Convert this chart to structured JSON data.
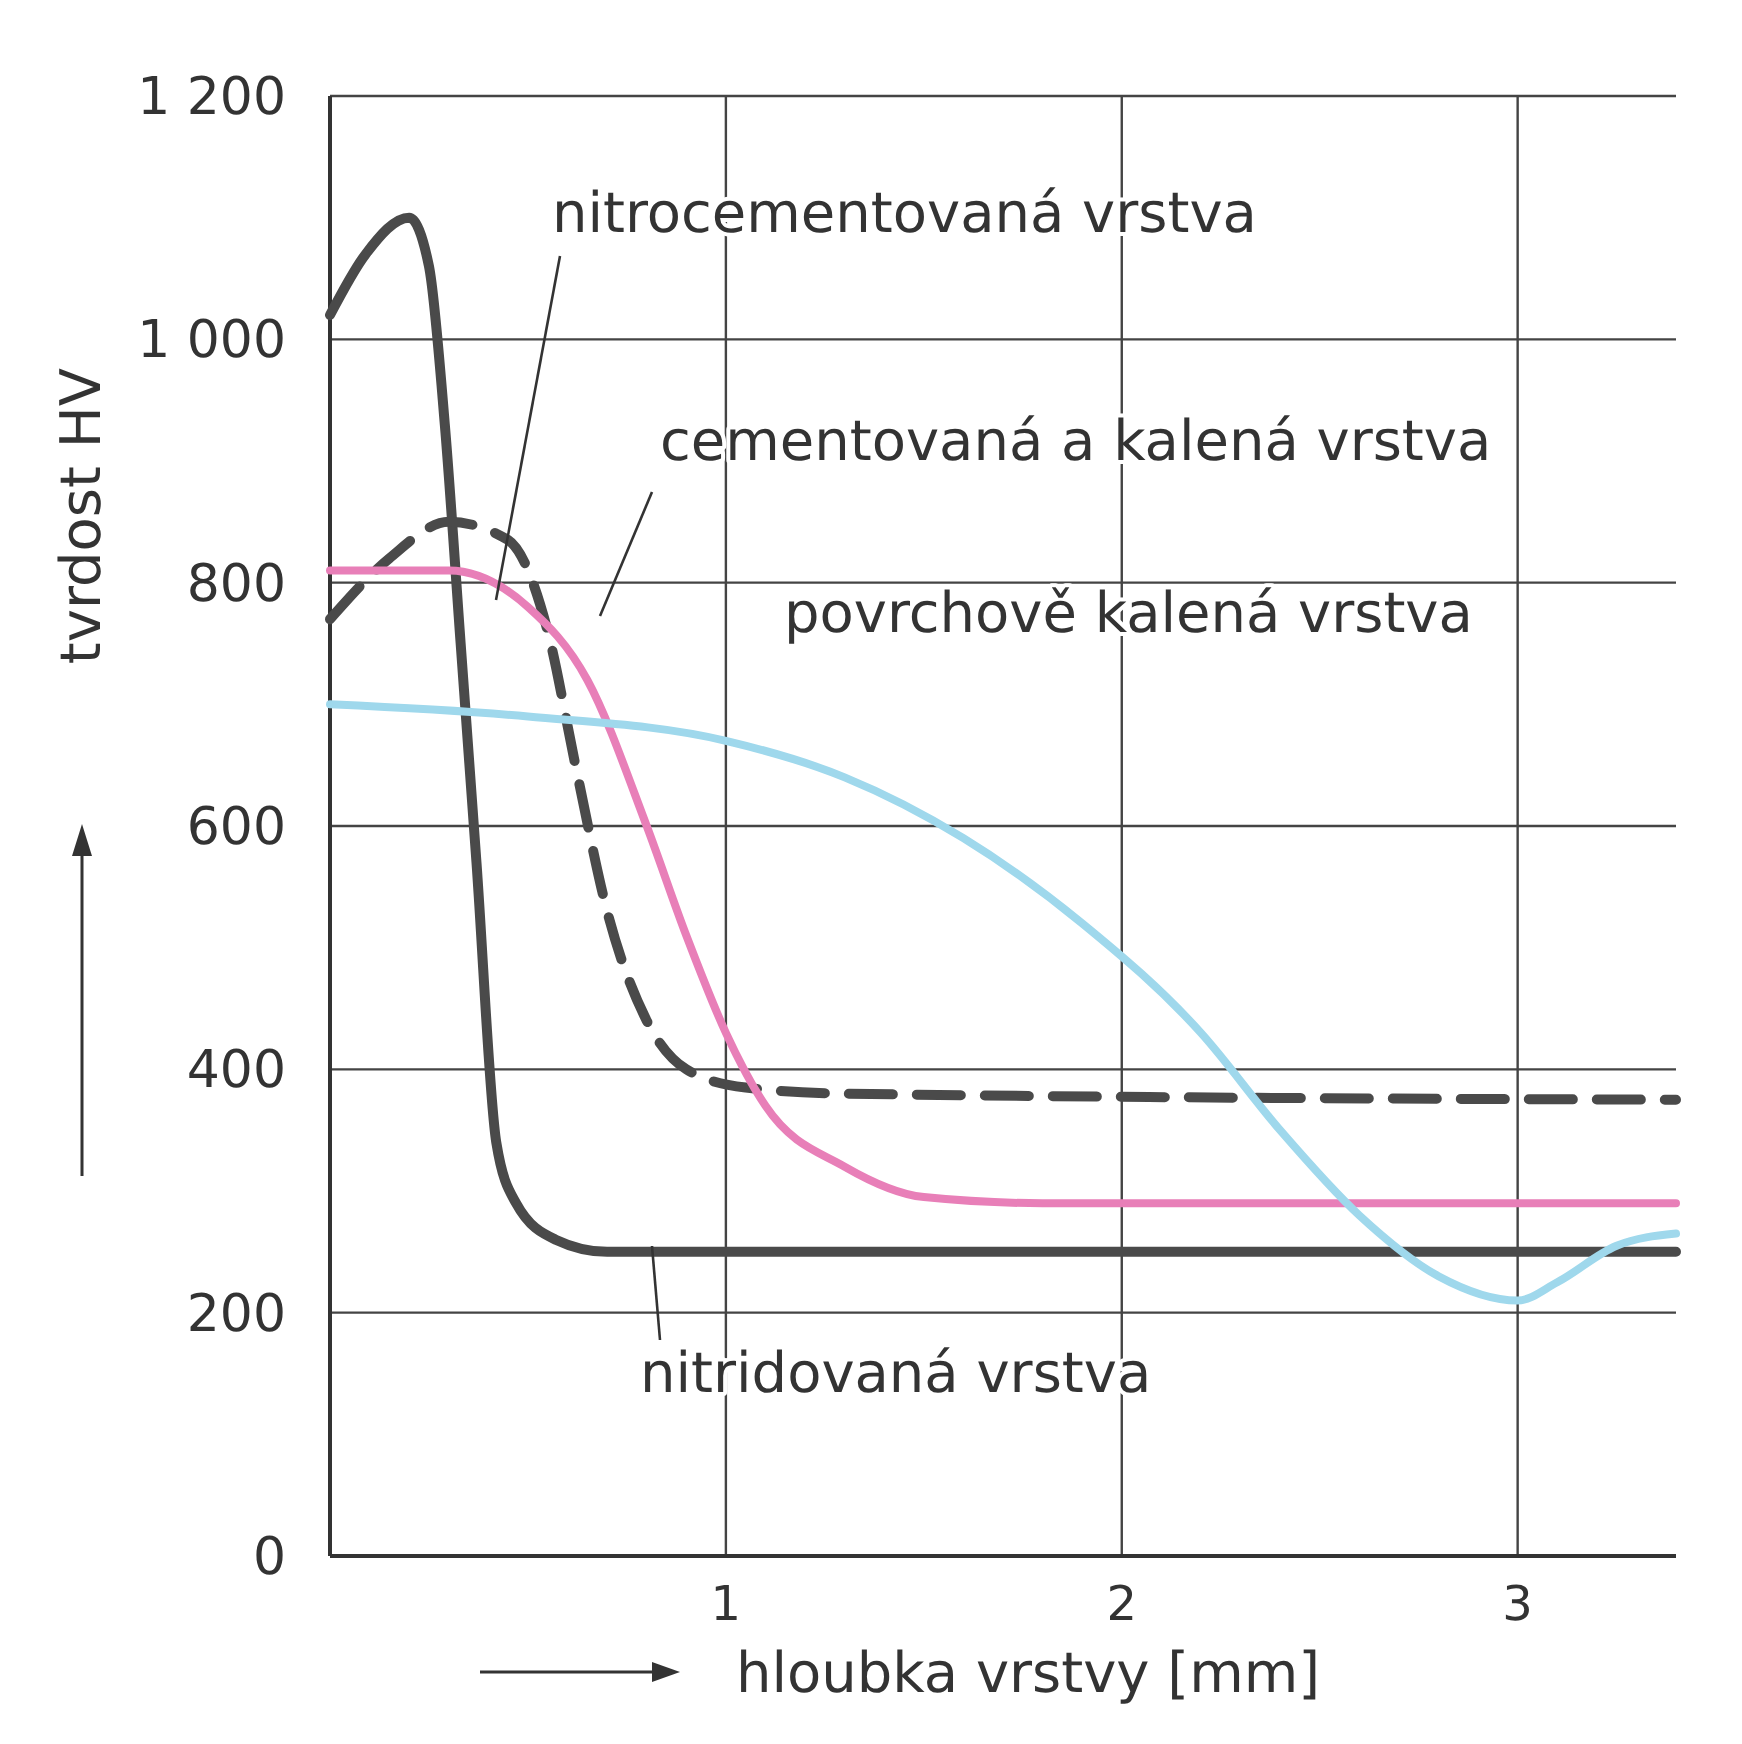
{
  "chart_data": {
    "type": "line",
    "xlabel": "hloubka vrstvy [mm]",
    "ylabel": "tvrdost HV",
    "xlim": [
      0,
      3.4
    ],
    "ylim": [
      0,
      1200
    ],
    "xticks": [
      1,
      2,
      3
    ],
    "yticks": [
      0,
      200,
      400,
      600,
      800,
      {
        "value": 1000,
        "label": "1 000"
      },
      {
        "value": 1200,
        "label": "1 200"
      }
    ],
    "grid": true,
    "series": [
      {
        "name": "nitridovaná vrstva",
        "color": "#4a4a4a",
        "line_style": "solid",
        "x": [
          0,
          0.09,
          0.2,
          0.25,
          0.29,
          0.33,
          0.37,
          0.42,
          0.47,
          0.57,
          0.7,
          3.4
        ],
        "values": [
          1020,
          1070,
          1100,
          1060,
          930,
          750,
          570,
          340,
          290,
          260,
          250,
          250
        ]
      },
      {
        "name": "nitrocementovaná vrstva",
        "color": "#4a4a4a",
        "line_style": "dashed",
        "x": [
          0,
          0.15,
          0.3,
          0.45,
          0.55,
          0.62,
          0.7,
          0.8,
          0.9,
          1.05,
          1.3,
          3.4
        ],
        "values": [
          770,
          820,
          850,
          835,
          760,
          650,
          530,
          440,
          400,
          385,
          380,
          375
        ]
      },
      {
        "name": "cementovaná a kalená vrstva",
        "color": "#e87fb8",
        "line_style": "solid",
        "x": [
          0,
          0.3,
          0.5,
          0.65,
          0.8,
          0.9,
          1.0,
          1.1,
          1.3,
          1.5,
          1.8,
          3.4
        ],
        "values": [
          810,
          810,
          780,
          720,
          600,
          510,
          430,
          370,
          320,
          295,
          290,
          290
        ]
      },
      {
        "name": "povrchově kalená vrstva",
        "color": "#9fd8ec",
        "line_style": "solid",
        "x": [
          0,
          0.5,
          1.0,
          1.3,
          1.6,
          1.9,
          2.2,
          2.4,
          2.6,
          2.8,
          3.0,
          3.1,
          3.25,
          3.4
        ],
        "values": [
          700,
          690,
          670,
          640,
          590,
          520,
          430,
          350,
          280,
          230,
          210,
          225,
          255,
          265
        ]
      }
    ]
  }
}
